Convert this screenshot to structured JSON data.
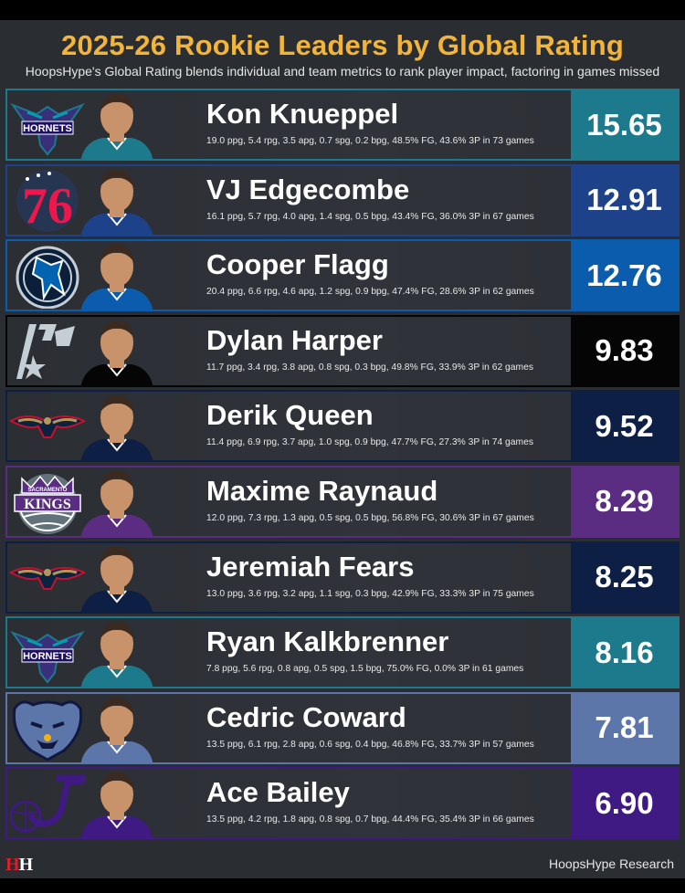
{
  "title": "2025-26 Rookie Leaders by Global Rating",
  "subtitle": "HoopsHype's Global Rating blends individual and team metrics to rank player impact, factoring in games missed",
  "players": [
    {
      "name": "Kon Knueppel",
      "stats": "19.0 ppg, 5.4 rpg, 3.5 apg, 0.7 spg, 0.2 bpg, 48.5% FG, 43.6% 3P in 73 games",
      "rating": "15.65",
      "team": "hornets",
      "logo_text": "HORNETS",
      "logo_icon": "hornets-logo",
      "color": "#1d7a8c"
    },
    {
      "name": "VJ Edgecombe",
      "stats": "16.1 ppg, 5.7 rpg, 4.0 apg, 1.4 spg, 0.5 bpg, 43.4% FG, 36.0% 3P in 67 games",
      "rating": "12.91",
      "team": "76ers",
      "logo_text": "76",
      "logo_icon": "sixers-logo",
      "color": "#1d428a"
    },
    {
      "name": "Cooper Flagg",
      "stats": "20.4 ppg, 6.6 rpg, 4.6 apg, 1.2 spg, 0.9 bpg, 47.4% FG, 28.6% 3P in 62 games",
      "rating": "12.76",
      "team": "mavericks",
      "logo_text": "",
      "logo_icon": "mavericks-logo",
      "color": "#0b5cad"
    },
    {
      "name": "Dylan Harper",
      "stats": "11.7 ppg, 3.4 rpg, 3.8 apg, 0.8 spg, 0.3 bpg, 49.8% FG, 33.9% 3P in 62 games",
      "rating": "9.83",
      "team": "spurs",
      "logo_text": "",
      "logo_icon": "spurs-logo",
      "color": "#050505"
    },
    {
      "name": "Derik Queen",
      "stats": "11.4 ppg, 6.9 rpg, 3.7 apg, 1.0 spg, 0.9 bpg, 47.7% FG, 27.3% 3P in 74 games",
      "rating": "9.52",
      "team": "pelicans",
      "logo_text": "",
      "logo_icon": "pelicans-logo",
      "color": "#0e1f45"
    },
    {
      "name": "Maxime Raynaud",
      "stats": "12.0 ppg, 7.3 rpg, 1.3 apg, 0.5 spg, 0.5 bpg, 56.8% FG, 30.6% 3P in 67 games",
      "rating": "8.29",
      "team": "kings",
      "logo_text": "KINGS",
      "logo_top_text": "SACRAMENTO",
      "logo_icon": "kings-logo",
      "color": "#5a2d82"
    },
    {
      "name": "Jeremiah Fears",
      "stats": "13.0 ppg, 3.6 rpg, 3.2 apg, 1.1 spg, 0.3 bpg, 42.9% FG, 33.3% 3P in 75 games",
      "rating": "8.25",
      "team": "pelicans",
      "logo_text": "",
      "logo_icon": "pelicans-logo",
      "color": "#0e1f45"
    },
    {
      "name": "Ryan Kalkbrenner",
      "stats": "7.8 ppg, 5.6 rpg, 0.8 apg, 0.5 spg, 1.5 bpg, 75.0% FG, 0.0% 3P in 61 games",
      "rating": "8.16",
      "team": "hornets",
      "logo_text": "HORNETS",
      "logo_icon": "hornets-logo",
      "color": "#1d7a8c"
    },
    {
      "name": "Cedric Coward",
      "stats": "13.5 ppg, 6.1 rpg, 2.8 apg, 0.6 spg, 0.4 bpg, 46.8% FG, 33.7% 3P in 57 games",
      "rating": "7.81",
      "team": "grizzlies",
      "logo_text": "",
      "logo_icon": "grizzlies-logo",
      "color": "#5d76a9"
    },
    {
      "name": "Ace Bailey",
      "stats": "13.5 ppg, 4.2 rpg, 1.8 apg, 0.8 spg, 0.7 bpg, 44.4% FG, 35.4% 3P in 66 games",
      "rating": "6.90",
      "team": "jazz",
      "logo_text": "",
      "logo_icon": "jazz-logo",
      "color": "#3e1a82"
    }
  ],
  "footer": {
    "brand_logo": "HH",
    "credit": "HoopsHype Research"
  },
  "colors": {
    "title": "#f2b53a",
    "background": "#2a2d31"
  }
}
